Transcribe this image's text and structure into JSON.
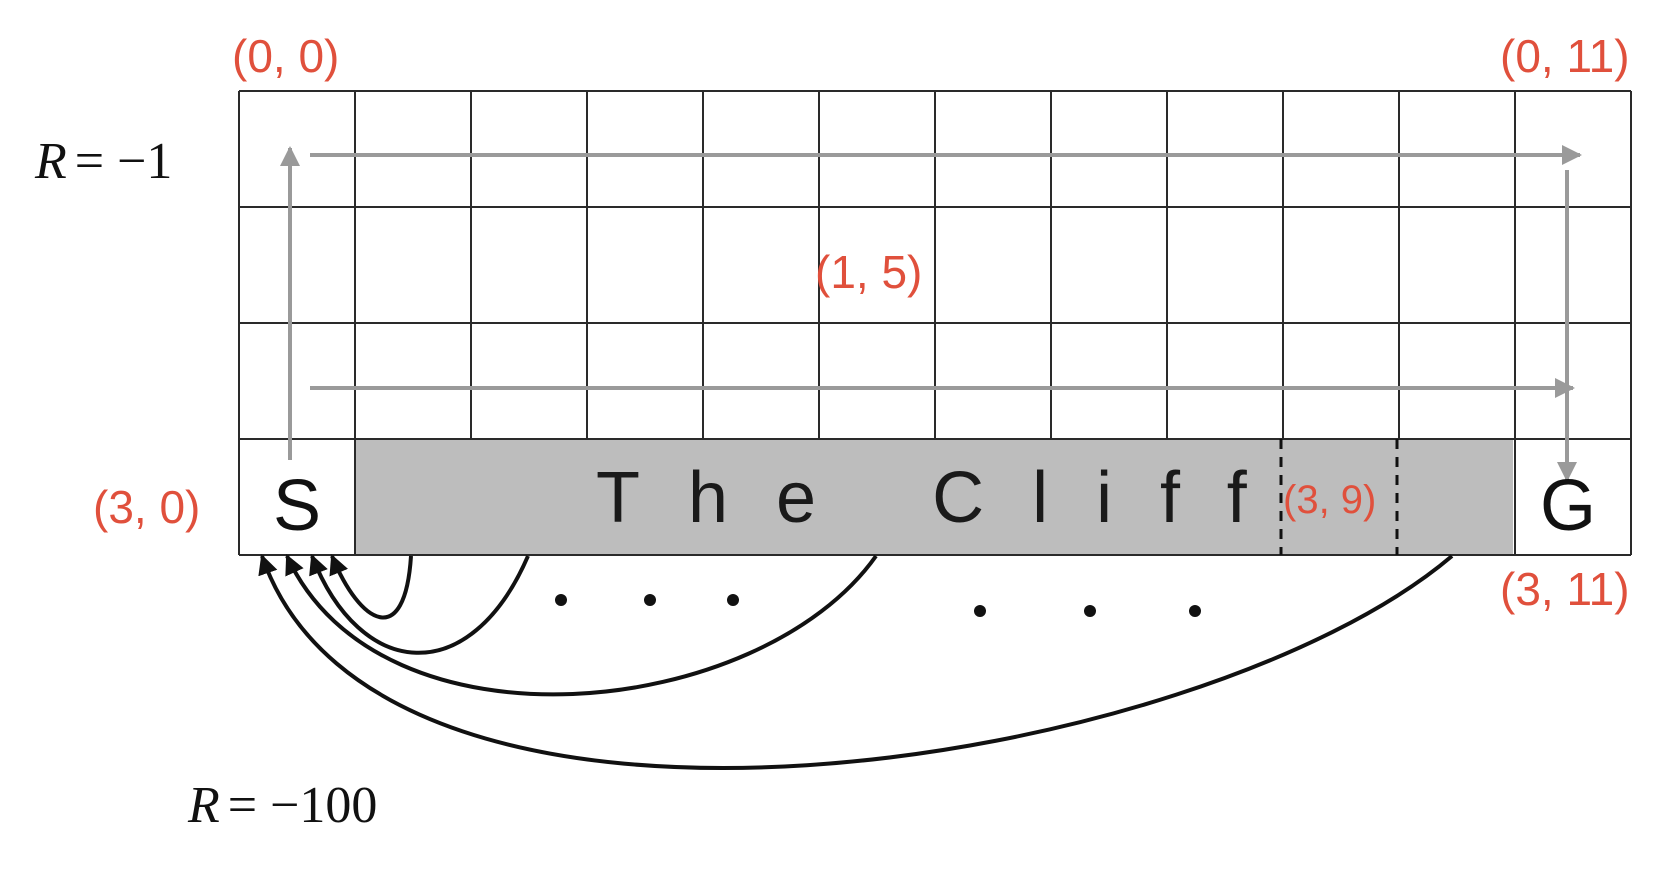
{
  "grid": {
    "rows": 4,
    "cols": 12
  },
  "labels": {
    "start": "S",
    "goal": "G",
    "cliff": "The Cliff",
    "reward_step_var": "R",
    "reward_step_value": "= −1",
    "reward_cliff_var": "R",
    "reward_cliff_value": "= −100"
  },
  "coords": {
    "top_left": "(0, 0)",
    "top_right": "(0, 11)",
    "middle": "(1, 5)",
    "bottom_left": "(3, 0)",
    "cliff_cell": "(3, 9)",
    "bottom_right": "(3, 11)"
  },
  "colors": {
    "coord": "#e0503c",
    "cliff_fill": "#bdbdbd",
    "grid_line": "#2a2a2a",
    "path_arrow": "#9a9a9a",
    "fall_arrow": "#111111"
  }
}
